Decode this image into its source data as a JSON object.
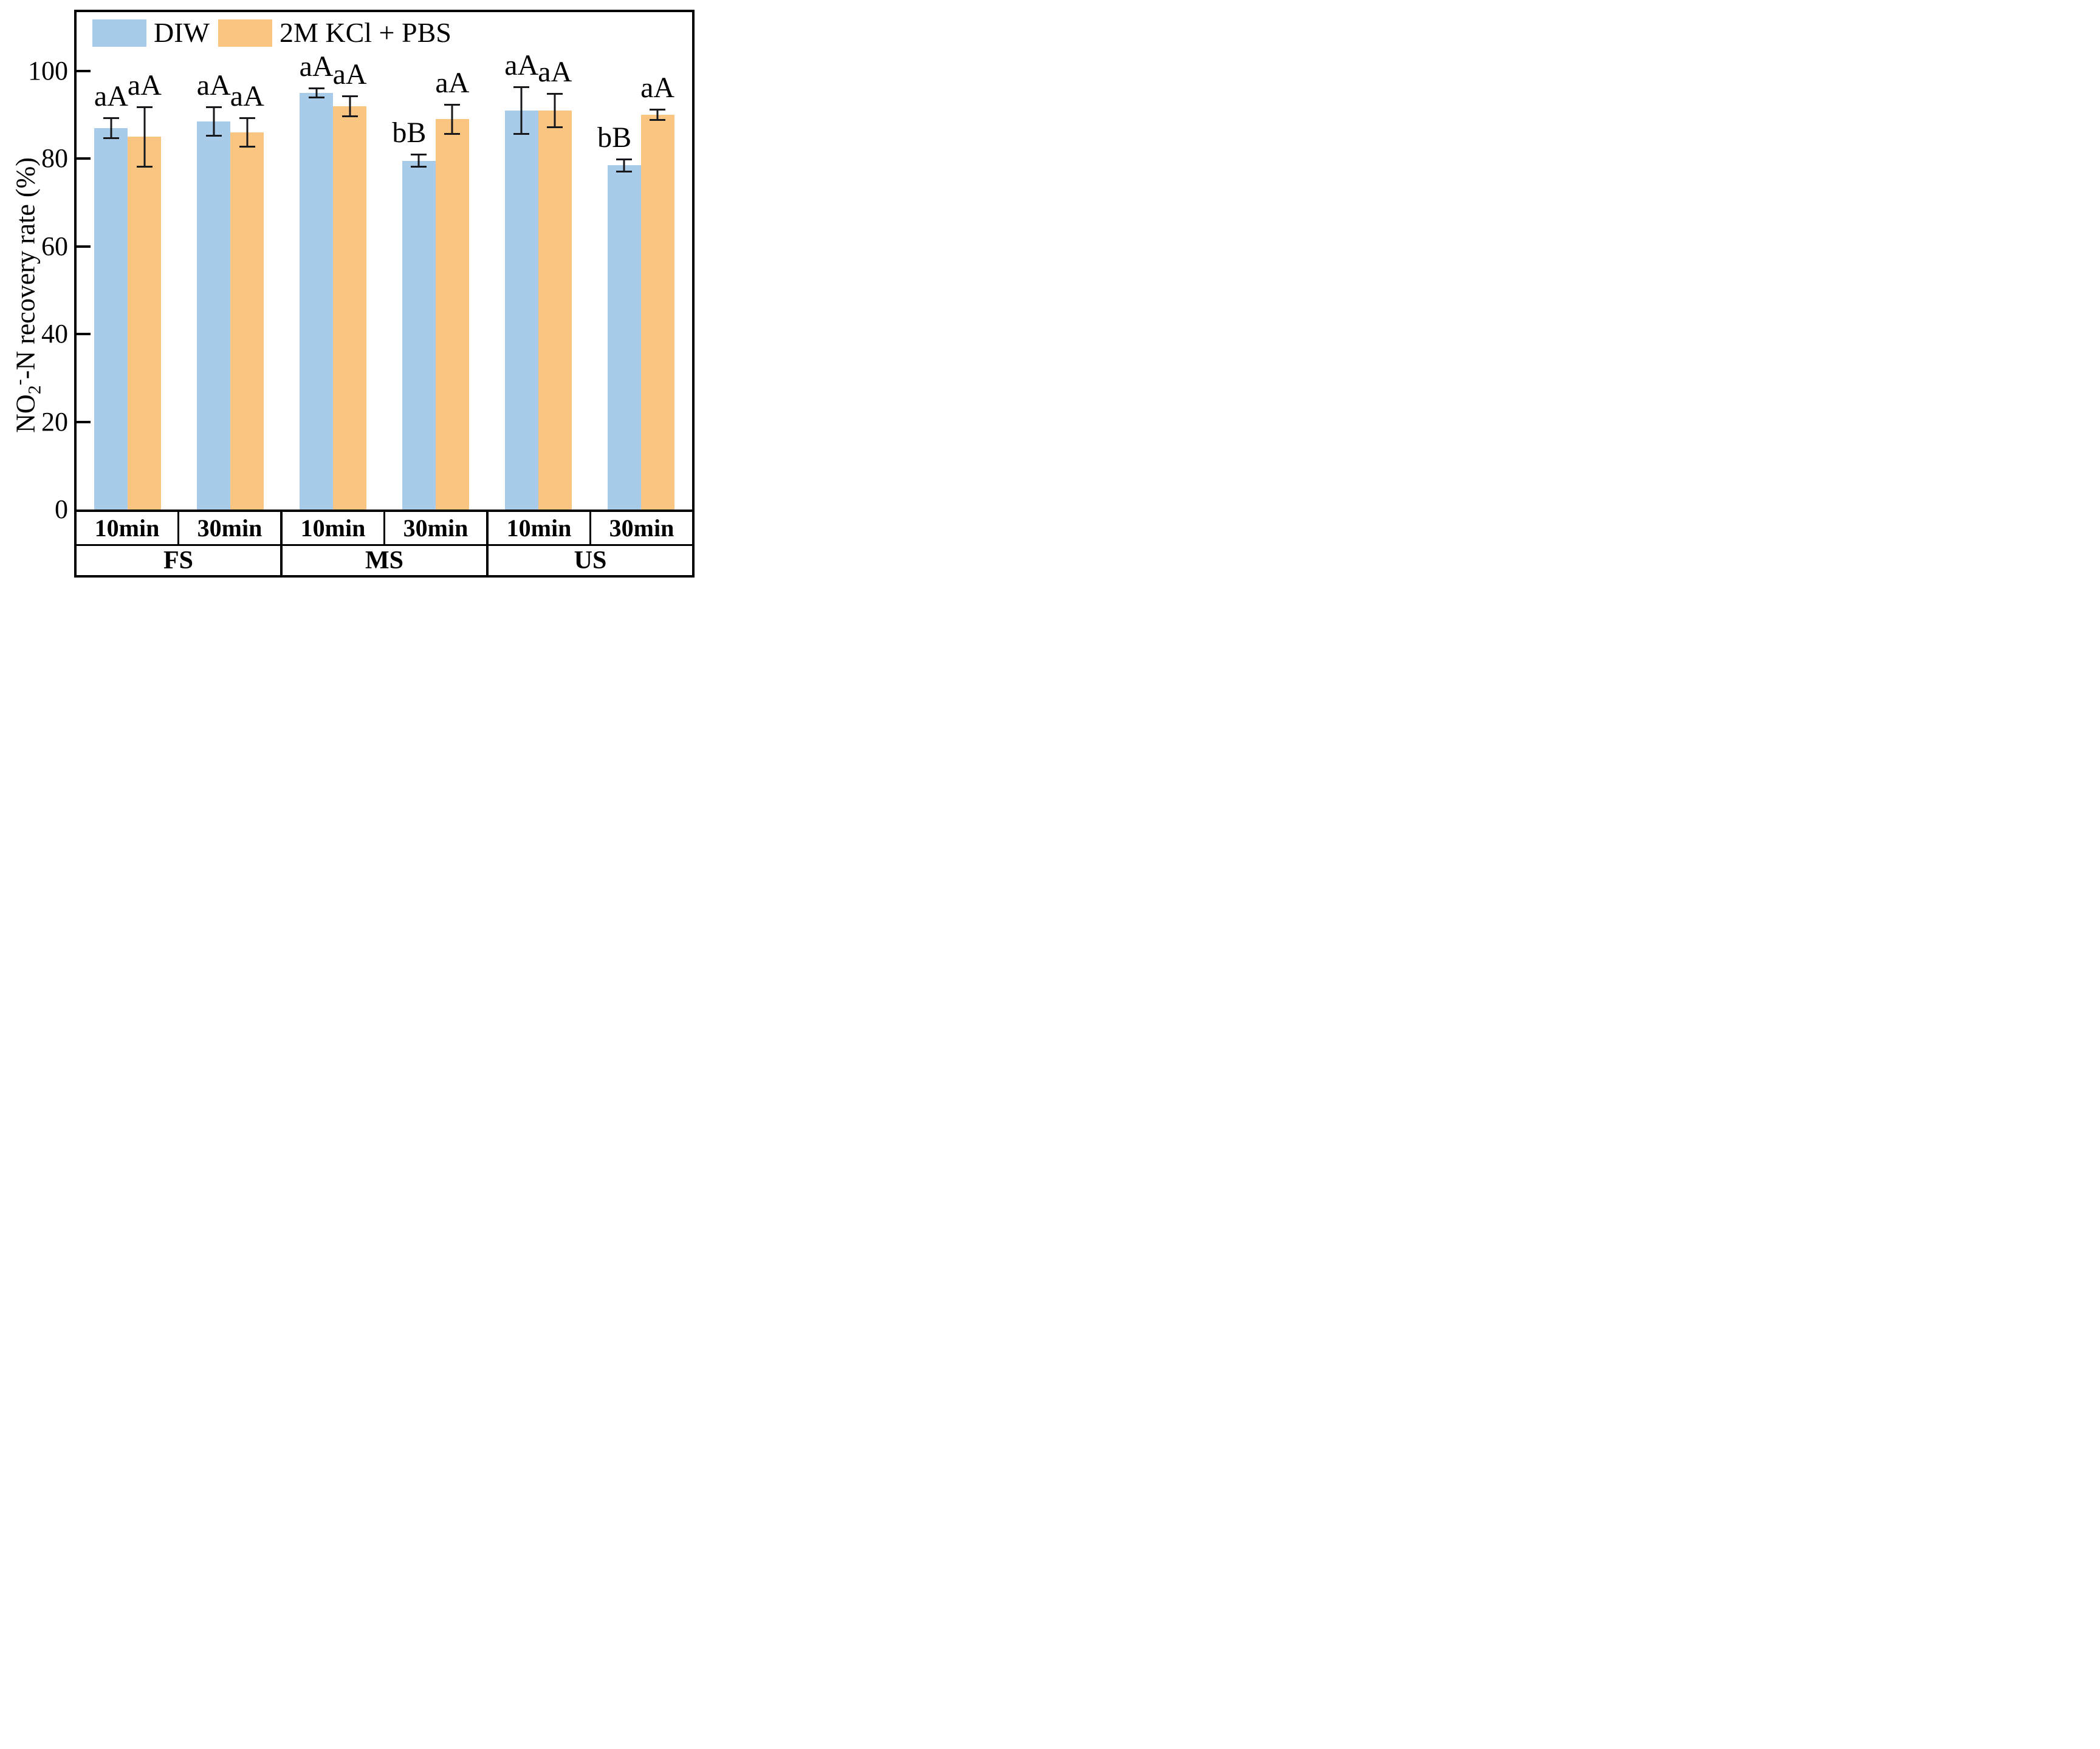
{
  "figure": {
    "y_axis_title": {
      "base1": "NO",
      "sub": "2",
      "sup": "-",
      "base2": "-N recovery rate (%)"
    },
    "colors": {
      "diw_fill": "#A7CBE9",
      "kcl_fill": "#FAC481",
      "axis": "#000000",
      "error_bar": "#16181C"
    }
  },
  "chart_data": {
    "type": "bar",
    "title": "",
    "xlabel": "",
    "ylabel": "NO2--N recovery rate (%)",
    "legend_position": "top-left-inside",
    "grid": "off",
    "y_ticks": [
      "100",
      "80",
      "60",
      "40",
      "20",
      "0"
    ],
    "y_tick_values": [
      100,
      80,
      60,
      40,
      20,
      0
    ],
    "ylim_visible_max": 113.4,
    "series_names": [
      "DIW",
      "2M KCl + PBS"
    ],
    "legend": [
      {
        "label": "DIW",
        "color": "#A7CBE9"
      },
      {
        "label": "2M KCl + PBS",
        "color": "#FAC481"
      }
    ],
    "groups": [
      {
        "label": "FS",
        "times": [
          {
            "label": "10min",
            "bars": [
              {
                "series": "DIW",
                "value": 87.0,
                "error": 2.5,
                "sig": "aA"
              },
              {
                "series": "2M KCl + PBS",
                "value": 85.0,
                "error": 7.0,
                "sig": "aA"
              }
            ]
          },
          {
            "label": "30min",
            "bars": [
              {
                "series": "DIW",
                "value": 88.5,
                "error": 3.5,
                "sig": "aA"
              },
              {
                "series": "2M KCl + PBS",
                "value": 86.0,
                "error": 3.5,
                "sig": "aA"
              }
            ]
          }
        ]
      },
      {
        "label": "MS",
        "times": [
          {
            "label": "10min",
            "bars": [
              {
                "series": "DIW",
                "value": 95.0,
                "error": 1.2,
                "sig": "aA"
              },
              {
                "series": "2M KCl + PBS",
                "value": 92.0,
                "error": 2.5,
                "sig": "aA"
              }
            ]
          },
          {
            "label": "30min",
            "bars": [
              {
                "series": "DIW",
                "value": 79.5,
                "error": 1.6,
                "sig": "bB"
              },
              {
                "series": "2M KCl + PBS",
                "value": 89.0,
                "error": 3.5,
                "sig": "aA"
              }
            ]
          }
        ]
      },
      {
        "label": "US",
        "times": [
          {
            "label": "10min",
            "bars": [
              {
                "series": "DIW",
                "value": 91.0,
                "error": 5.5,
                "sig": "aA"
              },
              {
                "series": "2M KCl + PBS",
                "value": 91.0,
                "error": 4.0,
                "sig": "aA"
              }
            ]
          },
          {
            "label": "30min",
            "bars": [
              {
                "series": "DIW",
                "value": 78.5,
                "error": 1.6,
                "sig": "bB"
              },
              {
                "series": "2M KCl + PBS",
                "value": 90.0,
                "error": 1.4,
                "sig": "aA"
              }
            ]
          }
        ]
      }
    ]
  }
}
